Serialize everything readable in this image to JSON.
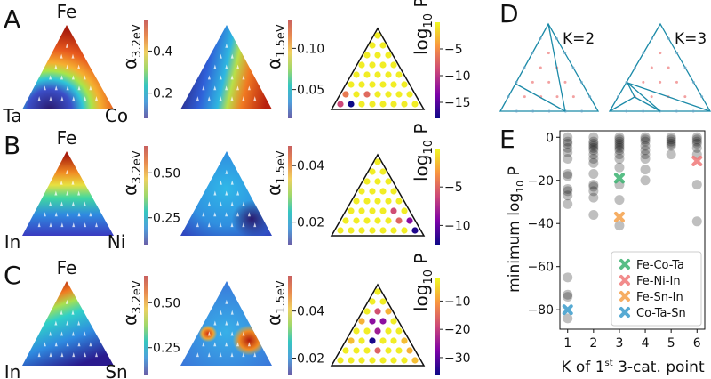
{
  "panel_letters": {
    "A": "A",
    "B": "B",
    "C": "C",
    "D": "D",
    "E": "E"
  },
  "colors": {
    "alpha_cmap": [
      "#6a5fa8",
      "#4f9fdc",
      "#35c6c0",
      "#9fd86a",
      "#f0d060",
      "#e88a50",
      "#c86060"
    ],
    "logp_cmap": [
      "#0d0887",
      "#7e03a8",
      "#cc4778",
      "#f89540",
      "#f0f921"
    ],
    "ternary_line": "#1b8aa8",
    "interior_dot": "#f08a8a"
  },
  "rows": [
    {
      "letter": "A",
      "vertices": {
        "top": "Fe",
        "left": "Ta",
        "right": "Co"
      },
      "maps": [
        {
          "label_main": "α",
          "label_sub": "3.2eV",
          "range": [
            0.08,
            0.55
          ],
          "ticks": [
            "0.2",
            "0.4"
          ],
          "tick_values": [
            0.2,
            0.4
          ],
          "cmap": "alpha"
        },
        {
          "label_main": "α",
          "label_sub": "1.5eV",
          "range": [
            0.015,
            0.135
          ],
          "ticks": [
            "0.05",
            "0.10"
          ],
          "tick_values": [
            0.05,
            0.1
          ],
          "cmap": "alpha"
        },
        {
          "label_main": "log",
          "label_sub": "10",
          "label_tail": " P",
          "range": [
            -18,
            0
          ],
          "ticks": [
            "−5",
            "−10",
            "−15"
          ],
          "tick_values": [
            -5,
            -10,
            -15
          ],
          "cmap": "logp",
          "points": [
            [
              [
                1,
                8,
                1
              ],
              -9
            ],
            [
              [
                1,
                7,
                2
              ],
              -18
            ],
            [
              [
                2,
                7,
                1
              ],
              -6
            ],
            [
              [
                2,
                5,
                3
              ],
              -7
            ]
          ]
        }
      ]
    },
    {
      "letter": "B",
      "vertices": {
        "top": "Fe",
        "left": "In",
        "right": "Ni"
      },
      "maps": [
        {
          "label_main": "α",
          "label_sub": "3.2eV",
          "range": [
            0.1,
            0.65
          ],
          "ticks": [
            "0.25",
            "0.50"
          ],
          "tick_values": [
            0.25,
            0.5
          ],
          "cmap": "alpha"
        },
        {
          "label_main": "α",
          "label_sub": "1.5eV",
          "range": [
            0.012,
            0.047
          ],
          "ticks": [
            "0.02",
            "0.04"
          ],
          "tick_values": [
            0.02,
            0.04
          ],
          "cmap": "alpha"
        },
        {
          "label_main": "log",
          "label_sub": "10",
          "label_tail": " P",
          "range": [
            -12.5,
            0
          ],
          "ticks": [
            "−5",
            "−10"
          ],
          "tick_values": [
            -5,
            -10
          ],
          "cmap": "logp",
          "points": [
            [
              [
                1,
                1,
                8
              ],
              -12
            ],
            [
              [
                2,
                1,
                7
              ],
              -9
            ],
            [
              [
                2,
                2,
                6
              ],
              -5
            ],
            [
              [
                3,
                2,
                5
              ],
              -6
            ]
          ]
        }
      ]
    },
    {
      "letter": "C",
      "vertices": {
        "top": "Fe",
        "left": "In",
        "right": "Sn"
      },
      "maps": [
        {
          "label_main": "α",
          "label_sub": "3.2eV",
          "range": [
            0.1,
            0.65
          ],
          "ticks": [
            "0.25",
            "0.50"
          ],
          "tick_values": [
            0.25,
            0.5
          ],
          "cmap": "alpha"
        },
        {
          "label_main": "α",
          "label_sub": "1.5eV",
          "range": [
            0.013,
            0.055
          ],
          "ticks": [
            "0.02",
            "0.04"
          ],
          "tick_values": [
            0.02,
            0.04
          ],
          "cmap": "alpha"
        },
        {
          "label_main": "log",
          "label_sub": "10",
          "label_tail": " P",
          "range": [
            -36,
            -2
          ],
          "ticks": [
            "−10",
            "−20",
            "−30"
          ],
          "tick_values": [
            -10,
            -20,
            -30
          ],
          "cmap": "logp",
          "points": [
            [
              [
                6,
                2,
                2
              ],
              -18
            ],
            [
              [
                5,
                3,
                2
              ],
              -26
            ],
            [
              [
                5,
                2,
                3
              ],
              -26
            ],
            [
              [
                4,
                3,
                3
              ],
              -24
            ],
            [
              [
                3,
                4,
                3
              ],
              -35
            ],
            [
              [
                2,
                4,
                4
              ],
              -16
            ],
            [
              [
                5,
                4,
                1
              ],
              -8
            ],
            [
              [
                6,
                1,
                3
              ],
              -8
            ],
            [
              [
                3,
                6,
                1
              ],
              -7
            ],
            [
              [
                2,
                1,
                7
              ],
              -8
            ],
            [
              [
                1,
                1,
                8
              ],
              -7
            ],
            [
              [
                3,
                1,
                6
              ],
              -7
            ]
          ]
        }
      ]
    }
  ],
  "panel_d": {
    "labels": [
      "K=2",
      "K=3"
    ]
  },
  "chart_data": {
    "type": "scatter",
    "title": "",
    "xlabel_main": "K of 1",
    "xlabel_sup": "st",
    "xlabel_tail": " 3-cat. point",
    "ylabel_main": "minimum log",
    "ylabel_sub": "10",
    "ylabel_tail": " P",
    "xlim": [
      0.7,
      6.3
    ],
    "ylim": [
      -89,
      3
    ],
    "xticks": [
      1,
      2,
      3,
      4,
      5,
      6
    ],
    "yticks": [
      0,
      -20,
      -40,
      -60,
      -80
    ],
    "ytick_labels": [
      "0",
      "−20",
      "−40",
      "−60",
      "−80"
    ],
    "grey_points": {
      "1": [
        0,
        -2,
        -3,
        -5,
        -7,
        -10,
        -17,
        -18,
        -24,
        -25,
        -27,
        -31,
        -65,
        -73,
        -74,
        -84
      ],
      "2": [
        0,
        -2,
        -3,
        -4,
        -5,
        -6,
        -8,
        -10,
        -12,
        -17,
        -22,
        -23,
        -25,
        -28,
        -36
      ],
      "3": [
        0,
        -1,
        -2,
        -3,
        -4,
        -5,
        -6,
        -8,
        -10,
        -14,
        -22,
        -29,
        -41
      ],
      "4": [
        0,
        -1,
        -2,
        -4,
        -6,
        -8,
        -10,
        -15,
        -20
      ],
      "5": [
        0,
        -1,
        -2,
        -3,
        -4,
        -8
      ],
      "6": [
        0,
        -1,
        -2,
        -3,
        -5,
        -8,
        -22,
        -39
      ]
    },
    "series": [
      {
        "name": "Fe-Co-Ta",
        "x": 3,
        "y": -19,
        "color": "#3cb371"
      },
      {
        "name": "Fe-Ni-In",
        "x": 6,
        "y": -11,
        "color": "#f07878"
      },
      {
        "name": "Fe-Sn-In",
        "x": 3,
        "y": -37,
        "color": "#f5a04a"
      },
      {
        "name": "Co-Ta-Sn",
        "x": 1,
        "y": -80,
        "color": "#3a9ccc"
      }
    ],
    "legend": "lower-right",
    "grid": false
  }
}
